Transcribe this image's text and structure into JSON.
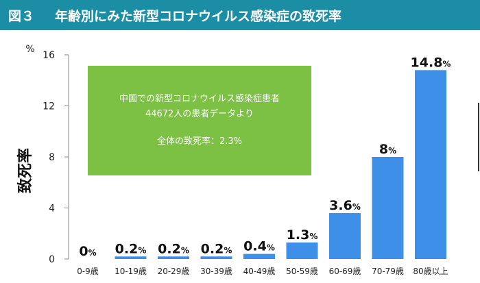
{
  "header": {
    "figure_label": "図３",
    "title": "年齢別にみた新型コロナウイルス感染症の致死率"
  },
  "annotation": {
    "line1": "中国での新型コロナウイルス感染症患者",
    "line2": "44672人の患者データより",
    "line3": "全体の致死率：2.3%"
  },
  "colors": {
    "header_bg": "#1b8ea6",
    "bar": "#3d8fe8",
    "annotation_bg": "#7cc143"
  },
  "chart_data": {
    "type": "bar",
    "title": "年齢別にみた新型コロナウイルス感染症の致死率",
    "ylabel": "致死率",
    "yunit": "%",
    "ylim": [
      0,
      16
    ],
    "yticks": [
      0,
      4,
      8,
      12,
      16
    ],
    "grid": false,
    "categories": [
      "0-9歳",
      "10-19歳",
      "20-29歳",
      "30-39歳",
      "40-49歳",
      "50-59歳",
      "60-69歳",
      "70-79歳",
      "80歳以上"
    ],
    "values": [
      0,
      0.2,
      0.2,
      0.2,
      0.4,
      1.3,
      3.6,
      8,
      14.8
    ],
    "value_labels": [
      "0",
      "0.2",
      "0.2",
      "0.2",
      "0.4",
      "1.3",
      "3.6",
      "8",
      "14.8"
    ],
    "value_suffix": "%"
  }
}
